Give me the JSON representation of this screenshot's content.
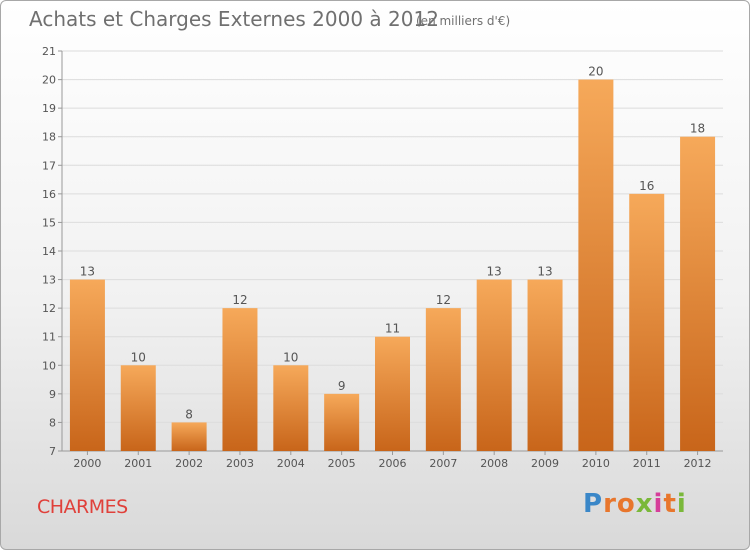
{
  "title": "Achats et Charges Externes 2000 à 2012",
  "unit": "(en milliers d'€)",
  "city": "CHARMES",
  "logo": {
    "letters": [
      "P",
      "r",
      "o",
      "x",
      "i",
      "t",
      "i"
    ],
    "colors": [
      "#3a87c8",
      "#e8762c",
      "#e8762c",
      "#7ab83a",
      "#d63e9a",
      "#e8762c",
      "#7ab83a"
    ]
  },
  "colors": {
    "bar_light": "#f6a95a",
    "bar_dark": "#c8651a",
    "grid": "#dcdcdc",
    "text": "#555555"
  },
  "chart_data": {
    "type": "bar",
    "title": "Achats et Charges Externes 2000 à 2012",
    "categories": [
      "2000",
      "2001",
      "2002",
      "2003",
      "2004",
      "2005",
      "2006",
      "2007",
      "2008",
      "2009",
      "2010",
      "2011",
      "2012"
    ],
    "values": [
      13,
      10,
      8,
      12,
      10,
      9,
      11,
      12,
      13,
      13,
      20,
      16,
      18
    ],
    "xlabel": "",
    "ylabel": "",
    "ylim": [
      7,
      21
    ],
    "yticks": [
      7,
      8,
      9,
      10,
      11,
      12,
      13,
      14,
      15,
      16,
      17,
      18,
      19,
      20,
      21
    ],
    "grid": true,
    "data_labels": true
  }
}
